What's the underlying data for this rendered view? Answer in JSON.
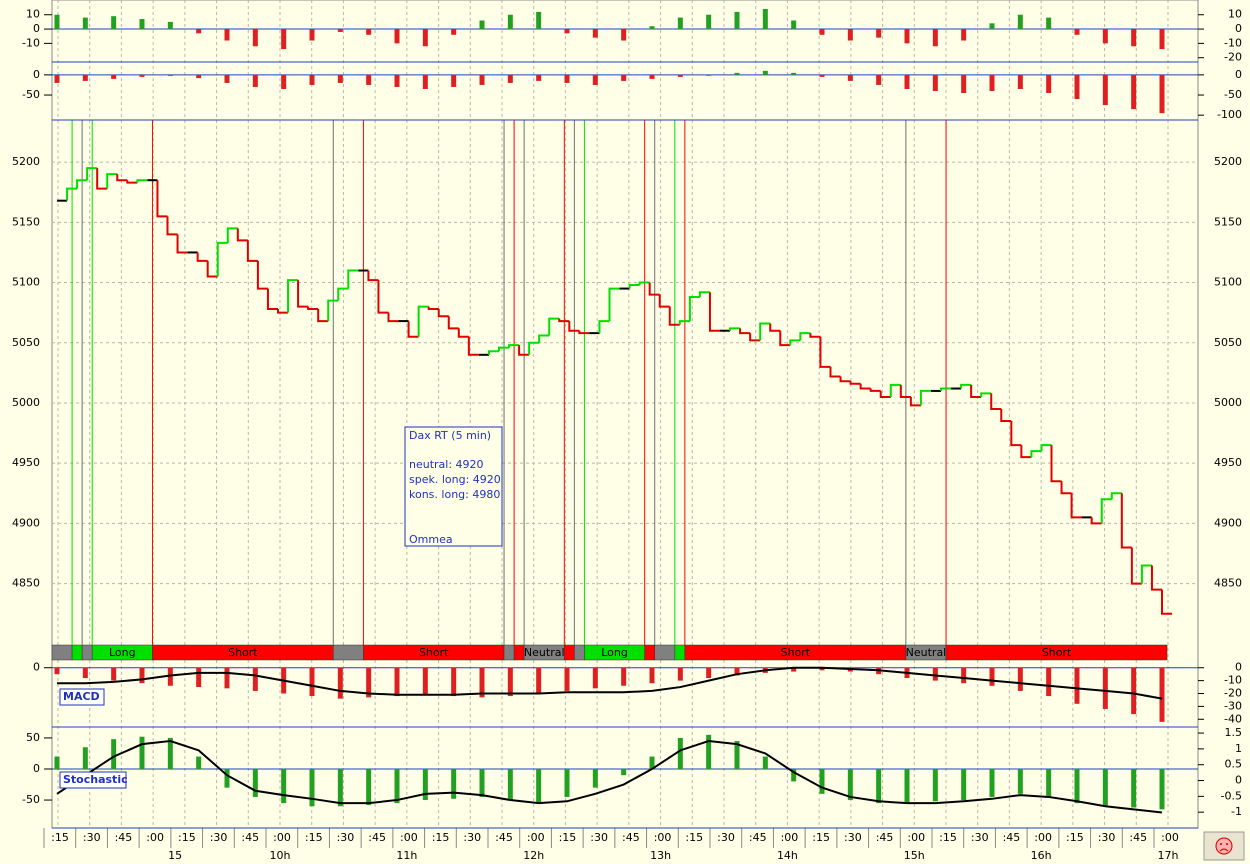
{
  "chart_data": {
    "type": "trading",
    "price": {
      "ylim": [
        4799,
        5235
      ],
      "yticks": [
        4850,
        4900,
        4950,
        5000,
        5050,
        5100,
        5150,
        5200
      ],
      "values": [
        5168,
        5178,
        5185,
        5195,
        5178,
        5190,
        5185,
        5183,
        5185,
        5185,
        5155,
        5140,
        5125,
        5125,
        5118,
        5105,
        5133,
        5145,
        5135,
        5118,
        5095,
        5078,
        5075,
        5102,
        5080,
        5078,
        5068,
        5085,
        5095,
        5110,
        5110,
        5102,
        5075,
        5068,
        5068,
        5055,
        5080,
        5078,
        5072,
        5062,
        5055,
        5040,
        5040,
        5043,
        5046,
        5048,
        5040,
        5050,
        5056,
        5070,
        5068,
        5060,
        5058,
        5058,
        5068,
        5095,
        5095,
        5098,
        5100,
        5090,
        5080,
        5065,
        5068,
        5088,
        5092,
        5060,
        5060,
        5062,
        5058,
        5052,
        5066,
        5060,
        5048,
        5052,
        5058,
        5055,
        5030,
        5022,
        5018,
        5016,
        5012,
        5010,
        5005,
        5015,
        5005,
        4998,
        5010,
        5010,
        5012,
        5012,
        5015,
        5005,
        5008,
        4995,
        4985,
        4965,
        4955,
        4960,
        4965,
        4935,
        4925,
        4905,
        4905,
        4900,
        4920,
        4925,
        4880,
        4850,
        4865,
        4845,
        4825
      ],
      "up_color": "#00e000",
      "down_color": "#e00000",
      "flat_color": "#000000",
      "grid": true
    },
    "signals": [
      {
        "label": null,
        "color": "#808080",
        "bars": 2
      },
      {
        "label": null,
        "color": "#00e000",
        "bars": 1
      },
      {
        "label": null,
        "color": "#808080",
        "bars": 1
      },
      {
        "label": "Long",
        "color": "#00e000",
        "bars": 6
      },
      {
        "label": "Short",
        "color": "#ff0000",
        "bars": 18
      },
      {
        "label": null,
        "color": "#808080",
        "bars": 3
      },
      {
        "label": "Short",
        "color": "#ff0000",
        "bars": 14
      },
      {
        "label": null,
        "color": "#808080",
        "bars": 1
      },
      {
        "label": null,
        "color": "#ff0000",
        "bars": 1
      },
      {
        "label": "Neutral",
        "color": "#808080",
        "bars": 4
      },
      {
        "label": null,
        "color": "#ff0000",
        "bars": 1
      },
      {
        "label": null,
        "color": "#808080",
        "bars": 1
      },
      {
        "label": "Long",
        "color": "#00e000",
        "bars": 6
      },
      {
        "label": null,
        "color": "#ff0000",
        "bars": 1
      },
      {
        "label": null,
        "color": "#808080",
        "bars": 2
      },
      {
        "label": null,
        "color": "#00e000",
        "bars": 1
      },
      {
        "label": "Short",
        "color": "#ff0000",
        "bars": 22
      },
      {
        "label": "Neutral",
        "color": "#808080",
        "bars": 4
      },
      {
        "label": "Short",
        "color": "#ff0000",
        "bars": 22
      }
    ],
    "info_box": {
      "title": "Dax RT (5 min)",
      "lines": [
        "neutral: 4920",
        "spek. long: 4920",
        "kons. long: 4980"
      ],
      "footer": "Ommea"
    },
    "panels": [
      {
        "name": null,
        "ylim": [
          -23,
          17.5
        ],
        "yticks": [
          -10,
          0,
          10
        ],
        "y2ticks": [
          -20,
          -10,
          0,
          10
        ],
        "pos_color": "#22a022",
        "neg_color": "#e02020",
        "values": [
          10,
          8,
          9,
          7,
          5,
          -3,
          -8,
          -12,
          -14,
          -8,
          -2,
          -4,
          -10,
          -12,
          -4,
          6,
          10,
          12,
          -3,
          -6,
          -8,
          2,
          8,
          10,
          12,
          14,
          6,
          -4,
          -8,
          -6,
          -10,
          -12,
          -8,
          4,
          10,
          8,
          -4,
          -10,
          -12,
          -14
        ]
      },
      {
        "name": null,
        "ylim": [
          -112,
          27
        ],
        "yticks": [
          -50,
          0
        ],
        "y2ticks": [
          -100,
          -50,
          0
        ],
        "pos_color": "#22a022",
        "neg_color": "#e02020",
        "values": [
          -20,
          -15,
          -10,
          -5,
          -2,
          -8,
          -20,
          -30,
          -35,
          -25,
          -20,
          -25,
          -30,
          -35,
          -30,
          -25,
          -20,
          -15,
          -20,
          -25,
          -15,
          -10,
          -5,
          0,
          5,
          10,
          5,
          -5,
          -15,
          -25,
          -35,
          -40,
          -45,
          -40,
          -35,
          -45,
          -60,
          -75,
          -85,
          -95
        ]
      },
      {
        "name": "MACD",
        "ylim": [
          -46,
          6
        ],
        "yticks": [
          0
        ],
        "y2ticks": [
          -40,
          -30,
          -20,
          -10,
          0
        ],
        "pos_color": "#e02020",
        "neg_color": "#e02020",
        "values": [
          -5,
          -8,
          -10,
          -12,
          -14,
          -15,
          -16,
          -18,
          -20,
          -22,
          -24,
          -23,
          -22,
          -21,
          -22,
          -23,
          -22,
          -20,
          -18,
          -16,
          -14,
          -12,
          -10,
          -8,
          -6,
          -4,
          -3,
          -2,
          -3,
          -5,
          -8,
          -10,
          -12,
          -14,
          -18,
          -22,
          -28,
          -32,
          -36,
          -42
        ],
        "line": [
          -12,
          -12,
          -11,
          -9,
          -6,
          -4,
          -4,
          -6,
          -10,
          -14,
          -18,
          -20,
          -21,
          -21,
          -21,
          -20,
          -20,
          -20,
          -19,
          -19,
          -19,
          -18,
          -15,
          -10,
          -5,
          -2,
          0,
          0,
          -1,
          -2,
          -4,
          -6,
          -8,
          -10,
          -12,
          -14,
          -16,
          -18,
          -20,
          -24
        ]
      },
      {
        "name": "Stochastic",
        "ylim": [
          -95,
          66
        ],
        "yticks": [
          -50,
          0,
          50
        ],
        "y2lim": [
          -1.5,
          1.66
        ],
        "y2ticks": [
          -1.0,
          -0.5,
          0.0,
          0.5,
          1.0,
          1.5
        ],
        "pos_color": "#22a022",
        "neg_color": "#22a022",
        "values": [
          20,
          35,
          48,
          52,
          50,
          20,
          -30,
          -45,
          -55,
          -60,
          -60,
          -58,
          -55,
          -50,
          -48,
          -45,
          -50,
          -55,
          -45,
          -30,
          -10,
          20,
          50,
          55,
          45,
          20,
          -20,
          -40,
          -50,
          -55,
          -55,
          -52,
          -50,
          -45,
          -40,
          -45,
          -55,
          -60,
          -62,
          -65
        ],
        "line": [
          -40,
          -10,
          20,
          40,
          45,
          30,
          -10,
          -35,
          -42,
          -48,
          -55,
          -55,
          -50,
          -40,
          -38,
          -42,
          -50,
          -55,
          -52,
          -40,
          -25,
          0,
          30,
          45,
          40,
          25,
          -5,
          -30,
          -45,
          -52,
          -55,
          -55,
          -52,
          -48,
          -42,
          -45,
          -52,
          -60,
          -65,
          -70
        ]
      }
    ],
    "time_ticks": [
      ":15",
      ":30",
      ":45",
      ":00",
      ":15",
      ":30",
      ":45",
      ":00",
      ":15",
      ":30",
      ":45",
      ":00",
      ":15",
      ":30",
      ":45",
      ":00",
      ":15",
      ":30",
      ":45",
      ":00",
      ":15",
      ":30",
      ":45",
      ":00",
      ":15",
      ":30",
      ":45",
      ":00",
      ":15",
      ":30",
      ":45",
      ":00",
      ":15",
      ":30",
      ":45",
      ":00"
    ],
    "hour_labels": [
      "15",
      "10h",
      "11h",
      "12h",
      "13h",
      "14h",
      "15h",
      "16h",
      "17h"
    ]
  }
}
